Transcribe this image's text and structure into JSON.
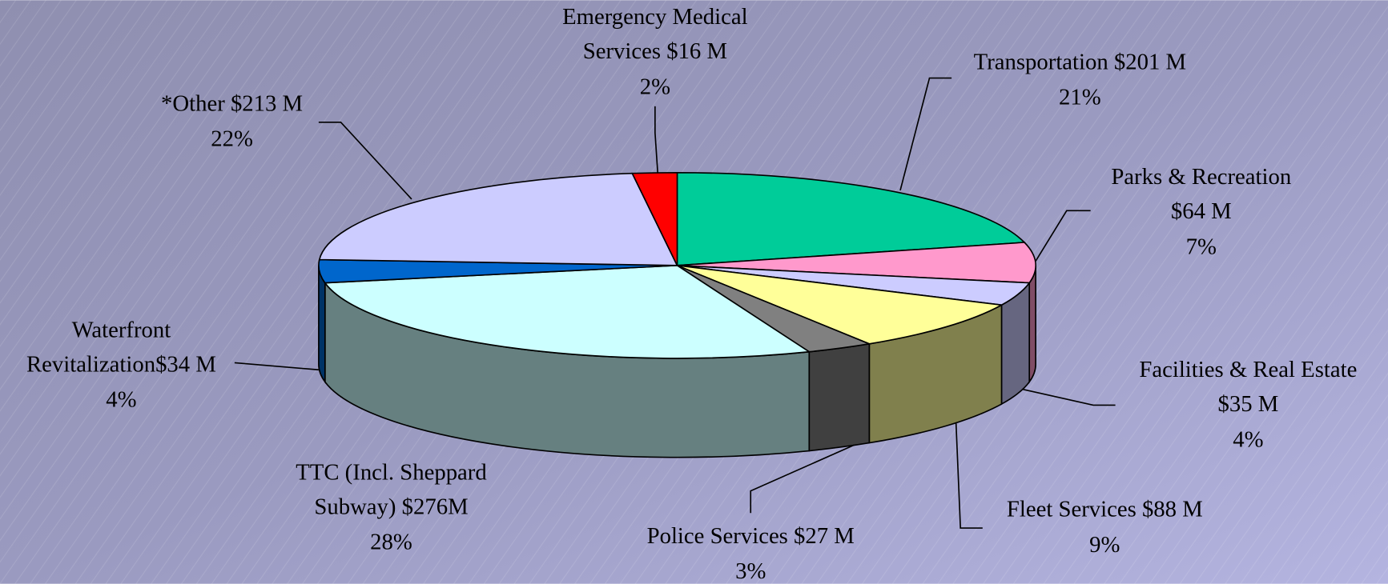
{
  "chart_data": {
    "type": "pie3d",
    "categories": [
      [
        "Transportation $201 M"
      ],
      [
        "Parks & Recreation",
        "$64 M"
      ],
      [
        "Facilities & Real Estate",
        "$35 M"
      ],
      [
        "Fleet Services $88 M"
      ],
      [
        "Police Services $27 M"
      ],
      [
        "TTC (Incl. Sheppard",
        "Subway) $276M"
      ],
      [
        "Waterfront",
        "Revitalization$34 M"
      ],
      [
        "*Other $213 M"
      ],
      [
        "Emergency Medical",
        "Services $16 M"
      ]
    ],
    "values": [
      21,
      7,
      4,
      9,
      3,
      28,
      4,
      22,
      2
    ],
    "value_labels": [
      "21%",
      "7%",
      "4%",
      "9%",
      "3%",
      "28%",
      "4%",
      "22%",
      "2%"
    ],
    "colors": [
      "#00cc99",
      "#ff99cc",
      "#ccccff",
      "#ffff99",
      "#808080",
      "#ccffff",
      "#0066cc",
      "#ccccff",
      "#ff0000"
    ]
  }
}
